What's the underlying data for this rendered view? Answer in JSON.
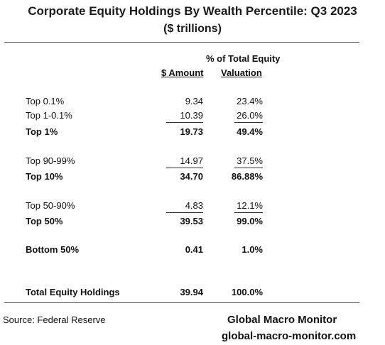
{
  "title": "Corporate Equity Holdings By Wealth Percentile:  Q3 2023",
  "subtitle": "($ trillions)",
  "headers": {
    "pct_line1": "% of Total Equity",
    "amount": "$ Amount",
    "valuation": "Valuation"
  },
  "rows": [
    {
      "label": "Top  0.1%",
      "amount": "9.34",
      "pct": "23.4%",
      "bold": false
    },
    {
      "label": "Top 1-0.1%",
      "amount": "10.39",
      "pct": "26.0%",
      "bold": false
    },
    {
      "label": "Top 1%",
      "amount": "19.73",
      "pct": "49.4%",
      "bold": true
    },
    {
      "label": "Top 90-99%",
      "amount": "14.97",
      "pct": "37.5%",
      "bold": false
    },
    {
      "label": "Top 10%",
      "amount": "34.70",
      "pct": "86.88%",
      "bold": true
    },
    {
      "label": "Top 50-90%",
      "amount": "4.83",
      "pct": "12.1%",
      "bold": false
    },
    {
      "label": "Top 50%",
      "amount": "39.53",
      "pct": "99.0%",
      "bold": true
    },
    {
      "label": "Bottom 50%",
      "amount": "0.41",
      "pct": "1.0%",
      "bold": true
    },
    {
      "label": "Total Equity Holdings",
      "amount": "39.94",
      "pct": "100.0%",
      "bold": true
    }
  ],
  "footer": {
    "source": "Source:  Federal Reserve",
    "brand": "Global Macro Monitor",
    "site": "global-macro-monitor.com"
  }
}
